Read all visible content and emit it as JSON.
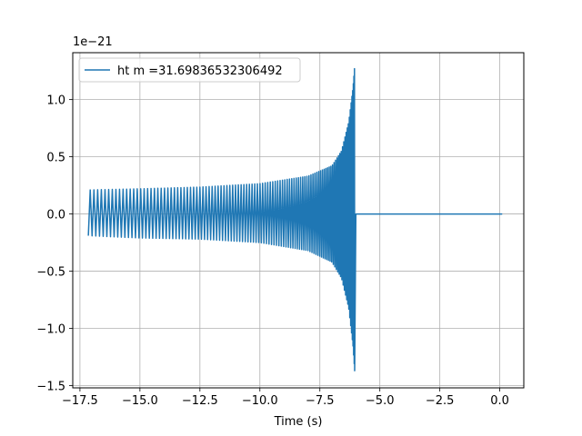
{
  "chart_data": {
    "type": "line",
    "title": "",
    "xlabel": "Time (s)",
    "ylabel": "",
    "y_scale_label": "1e−21",
    "xlim": [
      -17.8,
      1.0
    ],
    "ylim": [
      -1.52,
      1.41
    ],
    "grid": true,
    "legend_position": "top-left",
    "x_ticks": [
      -17.5,
      -15.0,
      -12.5,
      -10.0,
      -7.5,
      -5.0,
      -2.5,
      0.0
    ],
    "x_tick_labels": [
      "−17.5",
      "−15.0",
      "−12.5",
      "−10.0",
      "−7.5",
      "−5.0",
      "−2.5",
      "0.0"
    ],
    "y_ticks": [
      -1.5,
      -1.0,
      -0.5,
      0.0,
      0.5,
      1.0
    ],
    "y_tick_labels": [
      "−1.5",
      "−1.0",
      "−0.5",
      "0.0",
      "0.5",
      "1.0"
    ],
    "series": [
      {
        "name": "ht m =31.69836532306492",
        "color": "#1f77b4",
        "envelope_upper": [
          [
            -17.15,
            0.21
          ],
          [
            -15.0,
            0.22
          ],
          [
            -12.5,
            0.235
          ],
          [
            -10.0,
            0.265
          ],
          [
            -8.0,
            0.33
          ],
          [
            -7.0,
            0.42
          ],
          [
            -6.6,
            0.55
          ],
          [
            -6.3,
            0.8
          ],
          [
            -6.12,
            1.1
          ],
          [
            -6.05,
            1.29
          ]
        ],
        "envelope_lower": [
          [
            -17.15,
            -0.19
          ],
          [
            -15.0,
            -0.21
          ],
          [
            -12.5,
            -0.22
          ],
          [
            -10.0,
            -0.25
          ],
          [
            -8.0,
            -0.32
          ],
          [
            -7.0,
            -0.42
          ],
          [
            -6.6,
            -0.56
          ],
          [
            -6.3,
            -0.82
          ],
          [
            -6.12,
            -1.15
          ],
          [
            -6.05,
            -1.37
          ]
        ],
        "signal_start": -17.15,
        "merger_time": -6.05,
        "ringdown_end": -6.0,
        "flat_end": 0.1,
        "flat_value": 0.0
      }
    ]
  }
}
